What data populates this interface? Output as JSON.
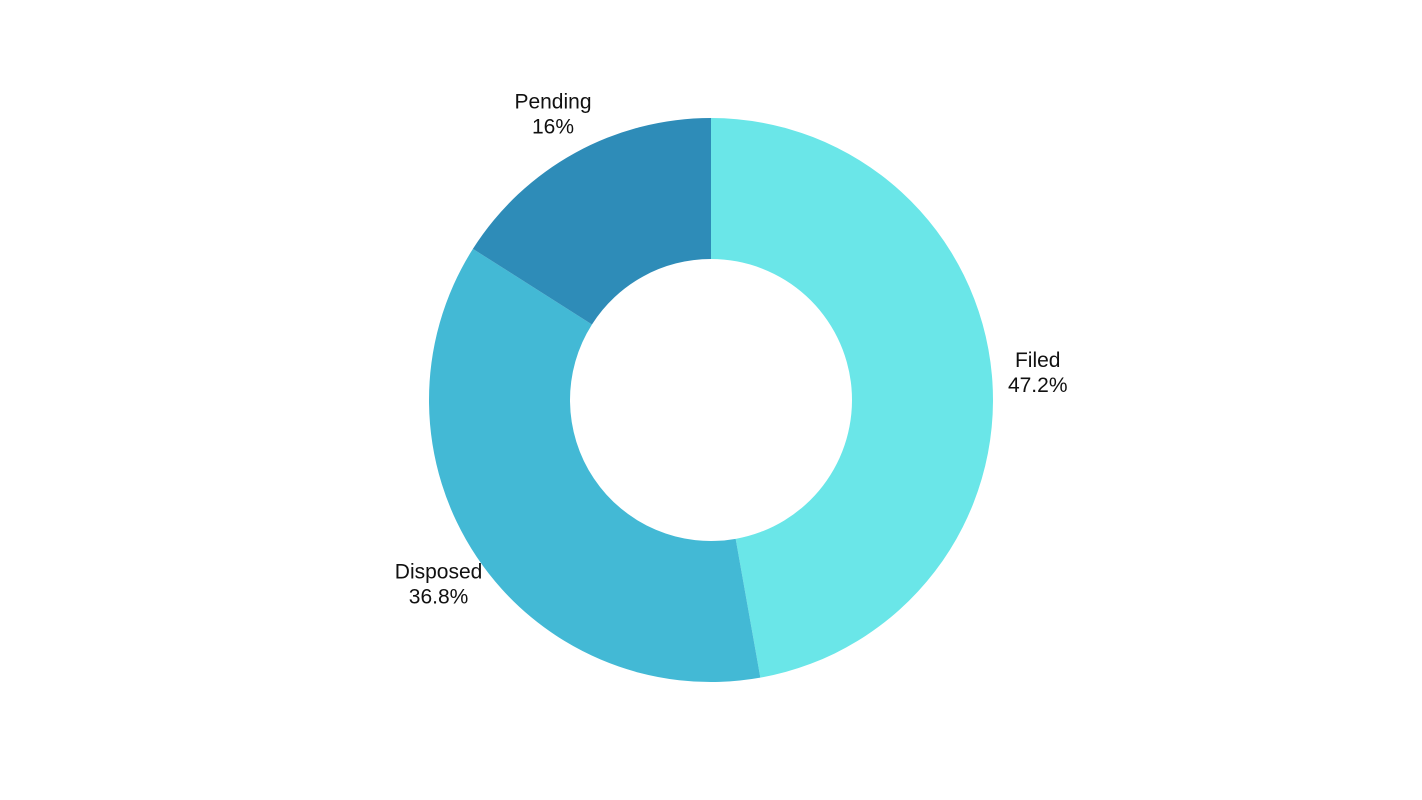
{
  "chart_data": {
    "type": "pie",
    "variant": "donut",
    "title": "",
    "start_angle": "top",
    "direction": "clockwise",
    "legend": "none",
    "slices": [
      {
        "label": "Filed",
        "value": 47.2,
        "display": "47.2%",
        "color": "#6ae6e8"
      },
      {
        "label": "Disposed",
        "value": 36.8,
        "display": "36.8%",
        "color": "#43b9d5"
      },
      {
        "label": "Pending",
        "value": 16,
        "display": "16%",
        "color": "#2e8cb8"
      }
    ]
  }
}
